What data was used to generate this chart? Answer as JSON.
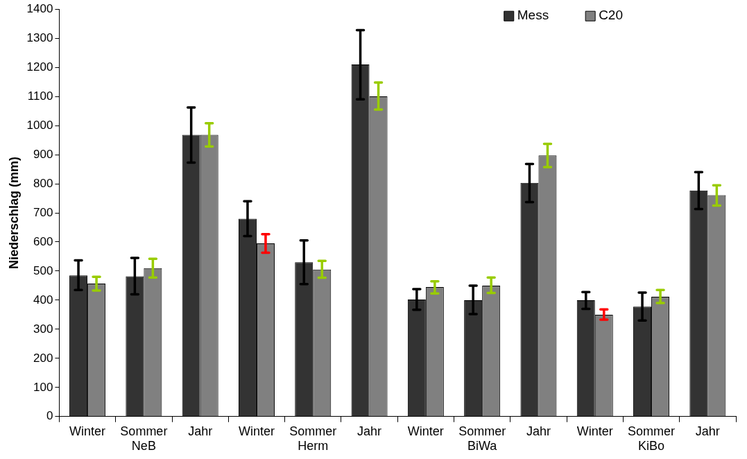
{
  "chart_data": {
    "type": "bar",
    "ylabel": "Niederschlag (mm)",
    "categories": [
      "Winter",
      "Sommer\nNeB",
      "Jahr",
      "Winter",
      "Sommer\nHerm",
      "Jahr",
      "Winter",
      "Sommer\nBiWa",
      "Jahr",
      "Winter",
      "Sommer\nKiBo",
      "Jahr"
    ],
    "series": [
      {
        "name": "Mess",
        "color": "#333333",
        "values": [
          485,
          482,
          968,
          680,
          530,
          1210,
          402,
          400,
          803,
          400,
          378,
          777
        ],
        "errors": [
          [
            435,
            537
          ],
          [
            420,
            545
          ],
          [
            873,
            1062
          ],
          [
            620,
            740
          ],
          [
            455,
            605
          ],
          [
            1090,
            1328
          ],
          [
            367,
            438
          ],
          [
            352,
            450
          ],
          [
            737,
            868
          ],
          [
            370,
            428
          ],
          [
            330,
            426
          ],
          [
            713,
            840
          ]
        ]
      },
      {
        "name": "C20",
        "color": "#808080",
        "values": [
          457,
          510,
          968,
          595,
          505,
          1100,
          445,
          450,
          897,
          350,
          412,
          761
        ],
        "errors": [
          [
            433,
            480
          ],
          [
            478,
            542
          ],
          [
            928,
            1008
          ],
          [
            563,
            627
          ],
          [
            477,
            535
          ],
          [
            1055,
            1148
          ],
          [
            423,
            465
          ],
          [
            425,
            478
          ],
          [
            857,
            937
          ],
          [
            333,
            368
          ],
          [
            390,
            435
          ],
          [
            725,
            795
          ]
        ]
      }
    ],
    "ylim": [
      0,
      1400
    ],
    "yticks": [
      0,
      100,
      200,
      300,
      400,
      500,
      600,
      700,
      800,
      900,
      1000,
      1100,
      1200,
      1300,
      1400
    ],
    "grid": false,
    "legend": "top right"
  }
}
